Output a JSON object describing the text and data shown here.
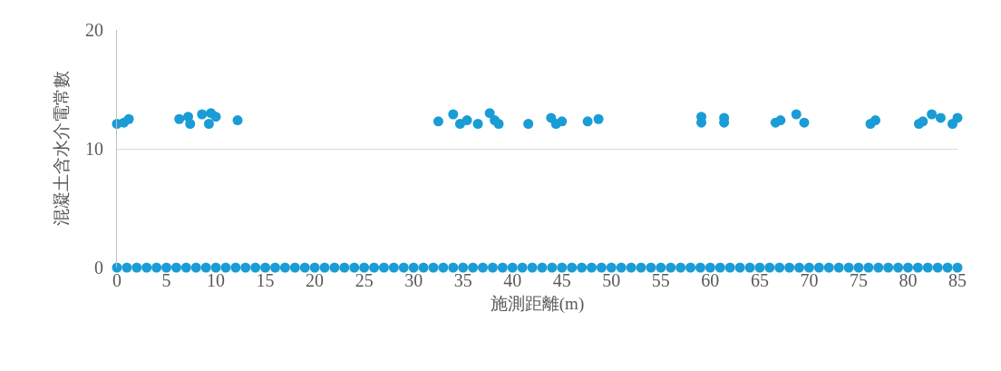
{
  "chart_data": {
    "type": "scatter",
    "xlabel": "施測距離(m)",
    "ylabel": "混凝土含水介電常數",
    "xlim": [
      0,
      85
    ],
    "xticks": [
      0,
      5,
      10,
      15,
      20,
      25,
      30,
      35,
      40,
      45,
      50,
      55,
      60,
      65,
      70,
      75,
      80,
      85
    ],
    "ylim": [
      0,
      20
    ],
    "yticks": [
      0,
      10,
      20
    ],
    "grid": "y",
    "marker": "circle",
    "series": [
      {
        "color": "#1a9cd6",
        "x": [
          0.0,
          0.7,
          1.2,
          6.3,
          7.2,
          7.4,
          8.6,
          9.3,
          9.5,
          10.0,
          12.2,
          32.5,
          34.0,
          34.7,
          35.4,
          36.5,
          37.7,
          38.2,
          38.6,
          41.6,
          43.9,
          44.4,
          45.0,
          47.6,
          48.7,
          59.1,
          59.1,
          61.4,
          61.4,
          66.6,
          67.1,
          68.7,
          69.5,
          76.2,
          76.7,
          81.1,
          81.5,
          82.4,
          83.3,
          84.5,
          85.0
        ],
        "values": [
          12.1,
          12.2,
          12.5,
          12.5,
          12.7,
          12.1,
          12.9,
          12.1,
          13.0,
          12.7,
          12.4,
          12.3,
          12.9,
          12.1,
          12.4,
          12.1,
          13.0,
          12.4,
          12.1,
          12.1,
          12.6,
          12.1,
          12.3,
          12.3,
          12.5,
          12.2,
          12.7,
          12.2,
          12.6,
          12.2,
          12.4,
          12.9,
          12.2,
          12.1,
          12.4,
          12.1,
          12.3,
          12.9,
          12.6,
          12.1,
          12.6
        ]
      },
      {
        "color": "#1a9cd6",
        "x": [
          0,
          1,
          2,
          3,
          4,
          5,
          6,
          7,
          8,
          9,
          10,
          11,
          12,
          13,
          14,
          15,
          16,
          17,
          18,
          19,
          20,
          21,
          22,
          23,
          24,
          25,
          26,
          27,
          28,
          29,
          30,
          31,
          32,
          33,
          34,
          35,
          36,
          37,
          38,
          39,
          40,
          41,
          42,
          43,
          44,
          45,
          46,
          47,
          48,
          49,
          50,
          51,
          52,
          53,
          54,
          55,
          56,
          57,
          58,
          59,
          60,
          61,
          62,
          63,
          64,
          65,
          66,
          67,
          68,
          69,
          70,
          71,
          72,
          73,
          74,
          75,
          76,
          77,
          78,
          79,
          80,
          81,
          82,
          83,
          84,
          85
        ],
        "values": [
          0,
          0,
          0,
          0,
          0,
          0,
          0,
          0,
          0,
          0,
          0,
          0,
          0,
          0,
          0,
          0,
          0,
          0,
          0,
          0,
          0,
          0,
          0,
          0,
          0,
          0,
          0,
          0,
          0,
          0,
          0,
          0,
          0,
          0,
          0,
          0,
          0,
          0,
          0,
          0,
          0,
          0,
          0,
          0,
          0,
          0,
          0,
          0,
          0,
          0,
          0,
          0,
          0,
          0,
          0,
          0,
          0,
          0,
          0,
          0,
          0,
          0,
          0,
          0,
          0,
          0,
          0,
          0,
          0,
          0,
          0,
          0,
          0,
          0,
          0,
          0,
          0,
          0,
          0,
          0,
          0,
          0,
          0,
          0,
          0,
          0
        ]
      }
    ]
  }
}
